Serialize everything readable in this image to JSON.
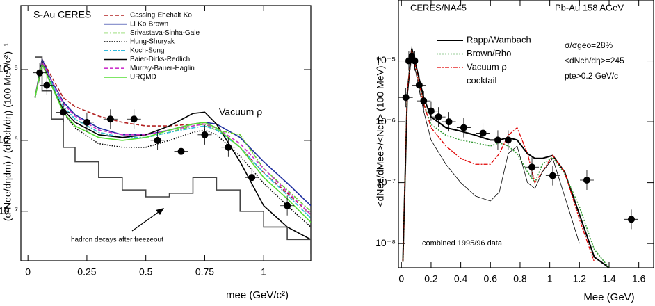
{
  "chart_data": [
    {
      "type": "line",
      "log_y": true,
      "ylabel": "(d²Nee/dηdm) / (dNch/dη) (100 MeV/c²)⁻¹",
      "xlabel": "mee (GeV/c²)",
      "annotations": [
        "S-Au   CERES",
        "Vacuum ρ",
        "hadron decays after freezeout"
      ],
      "xlim": [
        -0.03,
        1.2
      ],
      "ylim": [
        2e-08,
        8e-05
      ],
      "xticks": [
        0,
        0.25,
        0.5,
        0.75,
        1
      ],
      "yticks": [
        {
          "value": 1e-05,
          "label": "10⁻⁵"
        },
        {
          "value": 1e-06,
          "label": "10⁻⁶"
        },
        {
          "value": 1e-07,
          "label": "10⁻⁷"
        }
      ],
      "x": [
        0.03,
        0.06,
        0.1,
        0.15,
        0.2,
        0.3,
        0.4,
        0.5,
        0.6,
        0.7,
        0.75,
        0.8,
        0.9,
        1.0,
        1.1,
        1.2
      ],
      "series": [
        {
          "name": "Cassing-Ehehalt-Ko",
          "color": "#b22222",
          "dash": "5,3",
          "values": [
            4e-06,
            1.4e-05,
            8e-06,
            4e-06,
            3e-06,
            2.2e-06,
            1.8e-06,
            1.6e-06,
            1.6e-06,
            1.7e-06,
            1.7e-06,
            1.5e-06,
            8e-07,
            3.5e-07,
            1.8e-07,
            9e-08
          ]
        },
        {
          "name": "Li-Ko-Brown",
          "color": "#1f2f9f",
          "dash": "",
          "values": [
            4e-06,
            1.4e-05,
            7e-06,
            3.5e-06,
            2.3e-06,
            1.5e-06,
            1.2e-06,
            1.2e-06,
            1.4e-06,
            1.7e-06,
            1.8e-06,
            1.7e-06,
            1.1e-06,
            5e-07,
            2.5e-07,
            1.2e-07
          ]
        },
        {
          "name": "Srivastava-Sinha-Gale",
          "color": "#66cc33",
          "dash": "6,2,2,2",
          "values": [
            4e-06,
            1.3e-05,
            6.5e-06,
            3e-06,
            2e-06,
            1.3e-06,
            1.1e-06,
            1.1e-06,
            1.3e-06,
            1.6e-06,
            1.7e-06,
            1.4e-06,
            1.2e-06,
            4e-07,
            2e-07,
            1e-07
          ]
        },
        {
          "name": "Hung-Shuryak",
          "color": "#000000",
          "dash": "1.5,2",
          "values": [
            4e-06,
            1.2e-05,
            6e-06,
            2.5e-06,
            1.5e-06,
            9e-07,
            8e-07,
            8e-07,
            1e-06,
            1.3e-06,
            1.4e-06,
            1.2e-06,
            6e-07,
            2.5e-07,
            1.2e-07,
            6e-08
          ]
        },
        {
          "name": "Koch-Song",
          "color": "#33bbdd",
          "dash": "6,2,2,2",
          "values": [
            4e-06,
            1.3e-05,
            6.5e-06,
            3e-06,
            2e-06,
            1.3e-06,
            1.1e-06,
            1.1e-06,
            1.3e-06,
            1.5e-06,
            1.6e-06,
            1.4e-06,
            8e-07,
            3.5e-07,
            1.7e-07,
            8e-08
          ]
        },
        {
          "name": "Baier-Dirks-Redlich",
          "color": "#000000",
          "dash": "",
          "values": [
            4e-06,
            1.3e-05,
            6e-06,
            2.7e-06,
            1.8e-06,
            1.2e-06,
            1.1e-06,
            1.2e-06,
            1.6e-06,
            2.4e-06,
            2.5e-06,
            1.7e-06,
            5e-07,
            1.2e-07,
            6e-08,
            4e-08
          ]
        },
        {
          "name": "Murray-Bauer-Haglin",
          "color": "#cc33cc",
          "dash": "5,3",
          "values": [
            4e-06,
            1.3e-05,
            7e-06,
            3.3e-06,
            2.2e-06,
            1.4e-06,
            1.2e-06,
            1.2e-06,
            1.4e-06,
            1.6e-06,
            1.7e-06,
            1.5e-06,
            9e-07,
            4e-07,
            1.9e-07,
            9e-08
          ]
        },
        {
          "name": "URQMD",
          "color": "#55dd33",
          "dash": "",
          "values": [
            4e-06,
            1.2e-05,
            6e-06,
            2.5e-06,
            1.6e-06,
            1.1e-06,
            1e-06,
            1.1e-06,
            1.4e-06,
            1.7e-06,
            1.8e-06,
            1.5e-06,
            8e-07,
            3e-07,
            1.5e-07,
            7e-08
          ]
        },
        {
          "color": "#444444",
          "dash": "",
          "step": true,
          "values": [
            1.5e-05,
            5e-06,
            2e-06,
            8e-07,
            5e-07,
            3e-07,
            2e-07,
            1.6e-07,
            1.8e-07,
            3e-07,
            3e-07,
            2e-07,
            1e-07,
            6e-08,
            4e-08,
            2.5e-08
          ]
        }
      ],
      "points": {
        "x": [
          0.05,
          0.08,
          0.15,
          0.25,
          0.35,
          0.45,
          0.55,
          0.65,
          0.75,
          0.85,
          0.95,
          1.1
        ],
        "y": [
          9e-06,
          6e-06,
          2.5e-06,
          1.8e-06,
          2e-06,
          2e-06,
          1e-06,
          7e-07,
          1.2e-06,
          8e-07,
          3e-07,
          1.2e-07
        ]
      }
    },
    {
      "type": "line",
      "log_y": true,
      "legend_colored_text": true,
      "ylabel": "<dNee/dMee>/<Nch> (100 MeV)⁻¹",
      "xlabel": "Mee (GeV)",
      "annotations": [
        "CERES/NA45",
        "Pb-Au 158 AGeV",
        "σ/σgeo=28%",
        "<dNch/dη>=245",
        "pte>0.2 GeV/c",
        "combined 1995/96 data"
      ],
      "xlim": [
        -0.02,
        1.7
      ],
      "ylim": [
        4e-09,
        0.0001
      ],
      "xticks": [
        0,
        0.2,
        0.4,
        0.6,
        0.8,
        1,
        1.2,
        1.4,
        1.6
      ],
      "yticks": [
        {
          "value": 1e-05,
          "label": "10⁻⁵"
        },
        {
          "value": 1e-06,
          "label": "10⁻⁶"
        },
        {
          "value": 1e-07,
          "label": "10⁻⁷"
        },
        {
          "value": 1e-08,
          "label": "10⁻⁸"
        }
      ],
      "x": [
        0.01,
        0.04,
        0.07,
        0.1,
        0.15,
        0.2,
        0.3,
        0.4,
        0.5,
        0.6,
        0.66,
        0.72,
        0.78,
        0.85,
        0.9,
        0.95,
        1.02,
        1.1,
        1.2,
        1.3,
        1.4
      ],
      "series": [
        {
          "name": "Rapp/Wambach",
          "color": "#000000",
          "dash": "",
          "width": 2,
          "values": [
            5e-09,
            3e-06,
            1.6e-05,
            8e-06,
            2.5e-06,
            1.2e-06,
            8e-07,
            7e-07,
            6e-07,
            5e-07,
            5e-07,
            5.5e-07,
            5e-07,
            3e-07,
            2.5e-07,
            2.5e-07,
            2.8e-07,
            1.5e-07,
            3e-08,
            6e-09,
            4e-09
          ]
        },
        {
          "name": "Brown/Rho",
          "color": "#339933",
          "dash": "2,2",
          "width": 1.6,
          "values": [
            5e-09,
            3e-06,
            1.5e-05,
            7e-06,
            2e-06,
            9e-07,
            6e-07,
            5e-07,
            4.5e-07,
            4e-07,
            4.5e-07,
            4e-07,
            3e-07,
            1.5e-07,
            1e-07,
            2e-07,
            2.6e-07,
            1.4e-07,
            4e-08,
            8e-09,
            4e-09
          ]
        },
        {
          "name": "Vacuum ρ",
          "color": "#e00000",
          "dash": "6,2,2,2",
          "width": 1.3,
          "values": [
            5e-09,
            3e-06,
            1.5e-05,
            7e-06,
            2e-06,
            8e-07,
            4e-07,
            2.5e-07,
            2e-07,
            2e-07,
            3e-07,
            6e-07,
            8e-07,
            3e-07,
            1e-07,
            1.5e-07,
            2.8e-07,
            1.5e-07,
            2.5e-08,
            5e-09,
            null
          ]
        },
        {
          "name": "cocktail",
          "color": "#000000",
          "dash": "",
          "width": 0.8,
          "values": [
            5e-09,
            2.5e-06,
            1.4e-05,
            6e-06,
            1.5e-06,
            5e-07,
            2e-07,
            1e-07,
            6e-08,
            5e-08,
            7e-08,
            3e-07,
            4e-07,
            1e-07,
            8e-08,
            1.5e-07,
            2.5e-07,
            6e-08,
            1e-08,
            null,
            null
          ]
        }
      ],
      "points": {
        "x": [
          0.03,
          0.05,
          0.07,
          0.09,
          0.12,
          0.15,
          0.2,
          0.25,
          0.32,
          0.42,
          0.55,
          0.65,
          0.72,
          0.88,
          1.02,
          1.25,
          1.55
        ],
        "y": [
          2.5e-06,
          1e-05,
          1.2e-05,
          1e-05,
          4e-06,
          2.2e-06,
          1.5e-06,
          1.2e-06,
          1e-06,
          8e-07,
          6.5e-07,
          5e-07,
          5e-07,
          1.8e-07,
          1.3e-07,
          1.1e-07,
          2.5e-08
        ]
      }
    }
  ]
}
